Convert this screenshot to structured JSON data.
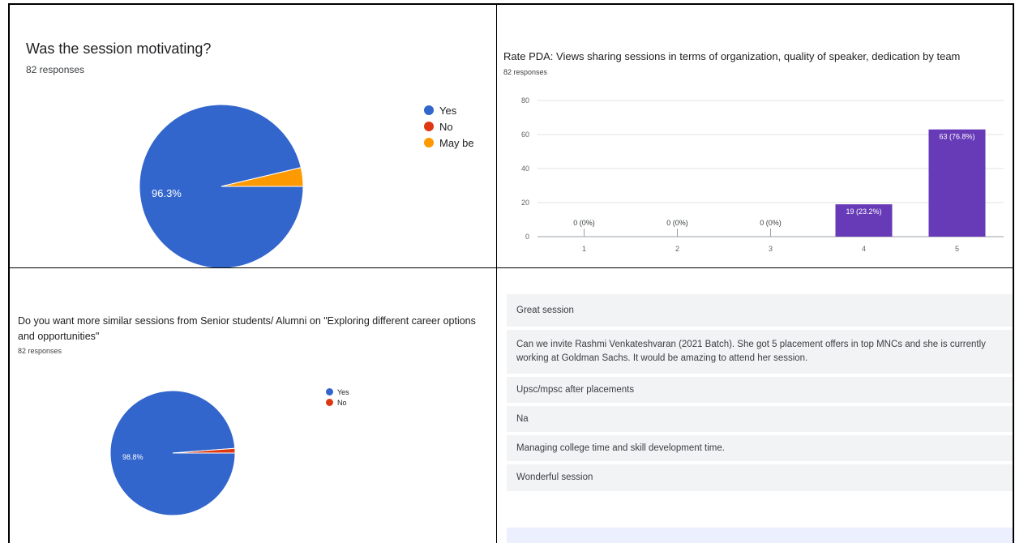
{
  "chart_data": [
    {
      "type": "pie",
      "title": "Was the session motivating?",
      "subtitle": "82 responses",
      "categories": [
        "Yes",
        "No",
        "May be"
      ],
      "values": [
        96.3,
        0,
        3.7
      ],
      "colors": [
        "#3366cc",
        "#dc3912",
        "#ff9900"
      ],
      "slice_labels": [
        "96.3%",
        "",
        ""
      ],
      "legend": "right"
    },
    {
      "type": "bar",
      "title": "Rate PDA: Views sharing sessions in terms of organization, quality of speaker, dedication by team",
      "subtitle": "82 responses",
      "categories": [
        "1",
        "2",
        "3",
        "4",
        "5"
      ],
      "values": [
        0,
        0,
        0,
        19,
        63
      ],
      "data_labels": [
        "0 (0%)",
        "0 (0%)",
        "0 (0%)",
        "19 (23.2%)",
        "63 (76.8%)"
      ],
      "yticks": [
        "0",
        "20",
        "40",
        "60",
        "80"
      ],
      "ylim": [
        0,
        80
      ],
      "color": "#673ab7",
      "grid": true
    },
    {
      "type": "pie",
      "title": "Do you want more similar sessions from Senior students/ Alumni on \"Exploring different career options and opportunities\"",
      "subtitle": "82 responses",
      "categories": [
        "Yes",
        "No"
      ],
      "values": [
        98.8,
        1.2
      ],
      "colors": [
        "#3366cc",
        "#dc3912"
      ],
      "slice_labels": [
        "98.8%",
        ""
      ],
      "legend": "right"
    }
  ],
  "responses": [
    "Great session",
    "Can we invite Rashmi Venkateshvaran (2021 Batch). She got 5 placement offers in top MNCs and she is currently working at Goldman Sachs. It would be amazing to attend her session.",
    "Upsc/mpsc after placements",
    "Na",
    "Managing college time and skill development time.",
    "Wonderful session"
  ]
}
